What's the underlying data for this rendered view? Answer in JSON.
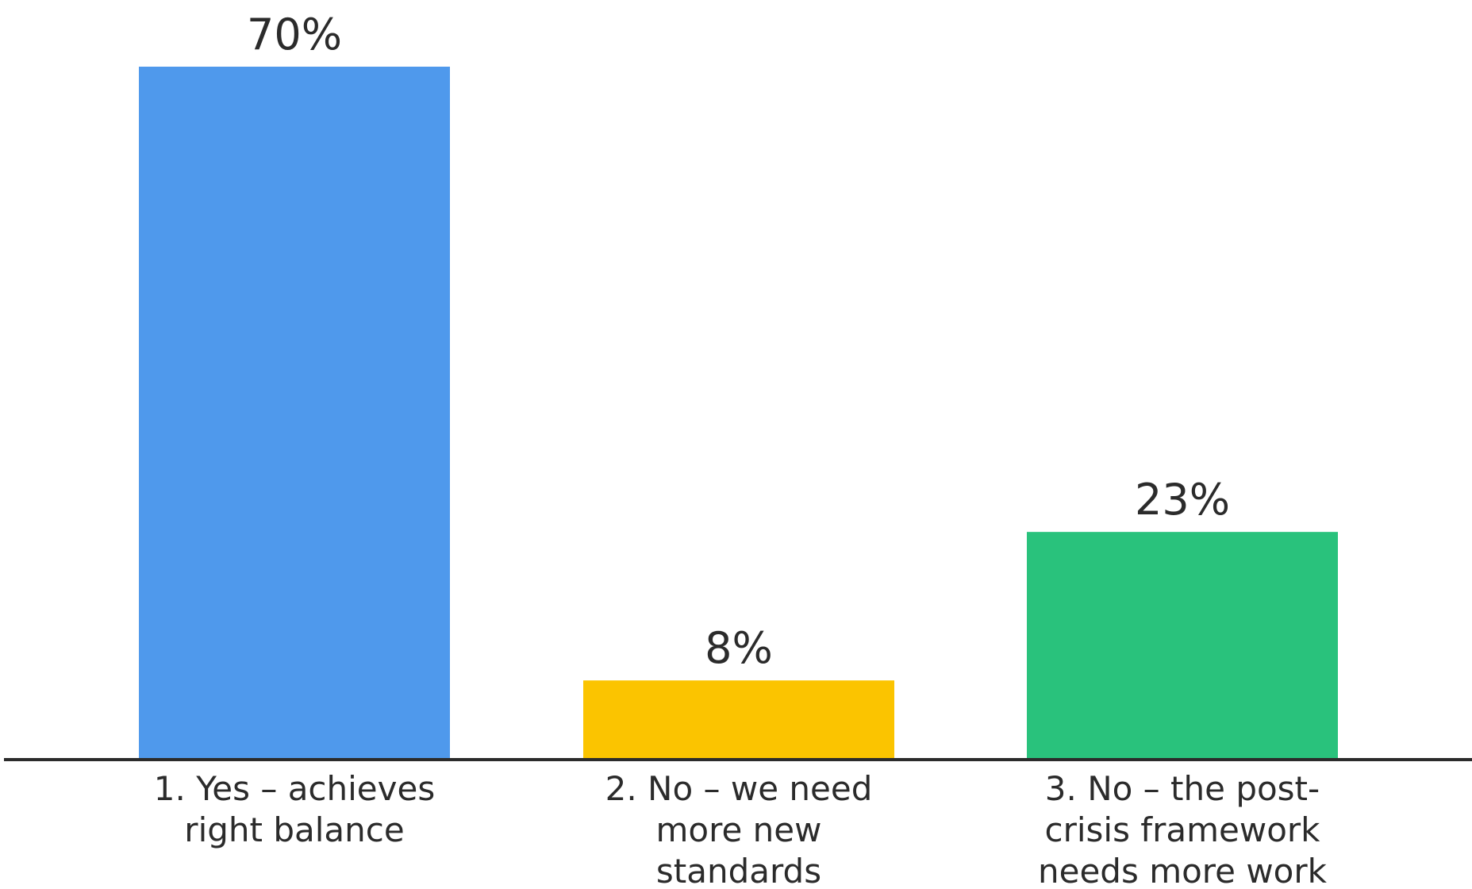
{
  "chart_data": {
    "type": "bar",
    "title": "",
    "xlabel": "",
    "ylabel": "",
    "unit": "%",
    "ylim": [
      0,
      70
    ],
    "grid": false,
    "legend": "none",
    "categories": [
      [
        "1. Yes – achieves",
        "right balance"
      ],
      [
        "2. No – we need",
        "more new",
        "standards"
      ],
      [
        "3. No – the post-",
        "crisis framework",
        "needs more work"
      ]
    ],
    "values": [
      70,
      8,
      23
    ],
    "value_labels": [
      "70%",
      "8%",
      "23%"
    ],
    "colors": [
      "#4f99ec",
      "#fbc400",
      "#29c27c"
    ],
    "axis_color": "#2b2b2b"
  }
}
